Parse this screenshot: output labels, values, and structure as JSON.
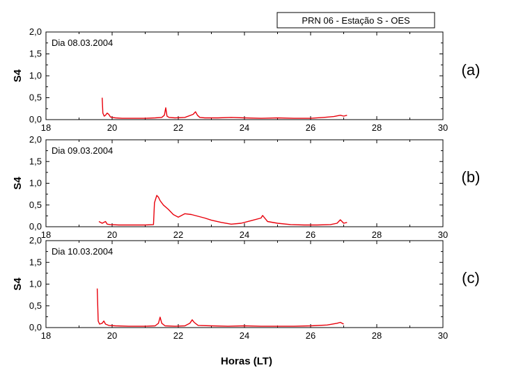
{
  "figure_title": "PRN 06 - Estação S - OES",
  "xlabel": "Horas (LT)",
  "colors": {
    "line": "#e8000b",
    "axis": "#000000"
  },
  "chart_data": [
    {
      "type": "line",
      "panel": "(a)",
      "annotation": "Dia 08.03.2004",
      "ylabel": "S4",
      "xlim": [
        18,
        30
      ],
      "ylim": [
        0,
        2.0
      ],
      "x_ticks": [
        "18",
        "20",
        "22",
        "24",
        "26",
        "28",
        "30"
      ],
      "y_ticks": [
        "0,0",
        "0,5",
        "1,0",
        "1,5",
        "2,0"
      ],
      "series": [
        {
          "x": [
            19.7,
            19.72,
            19.76,
            19.8,
            19.85,
            19.9,
            19.95,
            20.0,
            20.1,
            20.3,
            20.6,
            21.0,
            21.3,
            21.5,
            21.58,
            21.62,
            21.66,
            21.72,
            21.9,
            22.2,
            22.45,
            22.52,
            22.58,
            22.65,
            22.8,
            23.2,
            23.6,
            24.0,
            24.5,
            25.0,
            25.5,
            26.0,
            26.4,
            26.7,
            26.9,
            27.0,
            27.1
          ],
          "y": [
            0.5,
            0.15,
            0.08,
            0.1,
            0.15,
            0.12,
            0.06,
            0.05,
            0.04,
            0.03,
            0.03,
            0.03,
            0.04,
            0.05,
            0.1,
            0.27,
            0.08,
            0.05,
            0.04,
            0.05,
            0.12,
            0.18,
            0.1,
            0.05,
            0.04,
            0.04,
            0.05,
            0.04,
            0.03,
            0.04,
            0.03,
            0.03,
            0.05,
            0.07,
            0.1,
            0.08,
            0.1
          ]
        }
      ]
    },
    {
      "type": "line",
      "panel": "(b)",
      "annotation": "Dia 09.03.2004",
      "ylabel": "S4",
      "xlim": [
        18,
        30
      ],
      "ylim": [
        0,
        2.0
      ],
      "x_ticks": [
        "18",
        "20",
        "22",
        "24",
        "26",
        "28",
        "30"
      ],
      "y_ticks": [
        "0,0",
        "0,5",
        "1,0",
        "1,5",
        "2,0"
      ],
      "series": [
        {
          "x": [
            19.6,
            19.7,
            19.8,
            19.85,
            19.95,
            20.2,
            20.6,
            21.0,
            21.25,
            21.28,
            21.35,
            21.4,
            21.45,
            21.55,
            21.7,
            21.85,
            22.0,
            22.2,
            22.4,
            22.6,
            22.8,
            23.0,
            23.3,
            23.6,
            23.9,
            24.2,
            24.5,
            24.55,
            24.7,
            25.0,
            25.4,
            25.8,
            26.2,
            26.6,
            26.8,
            26.9,
            27.0,
            27.1
          ],
          "y": [
            0.12,
            0.08,
            0.12,
            0.06,
            0.05,
            0.04,
            0.04,
            0.04,
            0.05,
            0.55,
            0.72,
            0.68,
            0.6,
            0.5,
            0.4,
            0.28,
            0.22,
            0.3,
            0.28,
            0.24,
            0.2,
            0.15,
            0.1,
            0.06,
            0.08,
            0.14,
            0.2,
            0.26,
            0.12,
            0.08,
            0.05,
            0.04,
            0.04,
            0.05,
            0.08,
            0.16,
            0.08,
            0.1
          ]
        }
      ]
    },
    {
      "type": "line",
      "panel": "(c)",
      "annotation": "Dia 10.03.2004",
      "ylabel": "S4",
      "xlim": [
        18,
        30
      ],
      "ylim": [
        0,
        2.0
      ],
      "x_ticks": [
        "18",
        "20",
        "22",
        "24",
        "26",
        "28",
        "30"
      ],
      "y_ticks": [
        "0,0",
        "0,5",
        "1,0",
        "1,5",
        "2,0"
      ],
      "series": [
        {
          "x": [
            19.55,
            19.58,
            19.62,
            19.7,
            19.75,
            19.8,
            19.9,
            20.1,
            20.5,
            21.0,
            21.3,
            21.4,
            21.45,
            21.5,
            21.6,
            21.9,
            22.2,
            22.35,
            22.42,
            22.48,
            22.6,
            23.0,
            23.5,
            24.0,
            24.5,
            25.0,
            25.5,
            26.0,
            26.5,
            26.8,
            26.9,
            27.0
          ],
          "y": [
            0.9,
            0.15,
            0.08,
            0.1,
            0.15,
            0.08,
            0.05,
            0.04,
            0.03,
            0.03,
            0.04,
            0.1,
            0.24,
            0.1,
            0.04,
            0.03,
            0.04,
            0.1,
            0.18,
            0.12,
            0.05,
            0.04,
            0.03,
            0.04,
            0.03,
            0.03,
            0.03,
            0.04,
            0.06,
            0.1,
            0.12,
            0.08
          ]
        }
      ]
    }
  ]
}
